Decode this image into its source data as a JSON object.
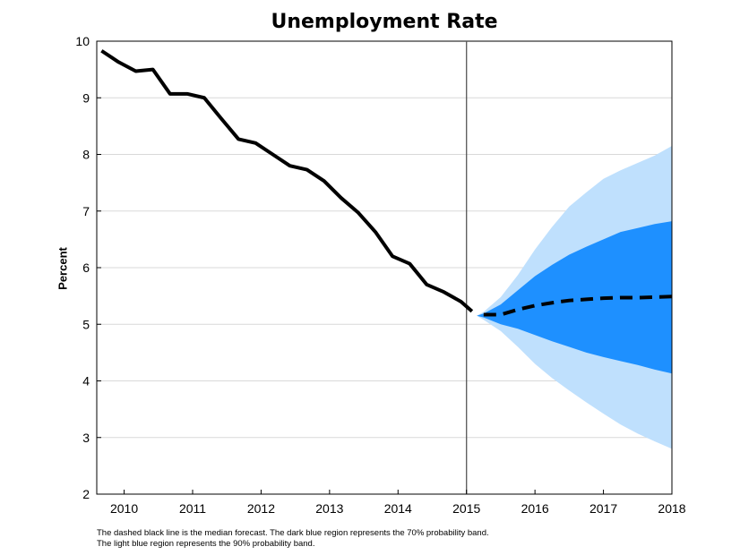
{
  "chart_data": {
    "type": "line",
    "title": "Unemployment Rate",
    "xlabel": "",
    "ylabel": "Percent",
    "ylim": [
      2,
      10
    ],
    "xlim": [
      2009.6,
      2018.0
    ],
    "yticks": [
      "2",
      "3",
      "4",
      "5",
      "6",
      "7",
      "8",
      "9",
      "10"
    ],
    "xticks": [
      "2010",
      "2011",
      "2012",
      "2013",
      "2014",
      "2015",
      "2016",
      "2017",
      "2018"
    ],
    "forecast_start": 2015.0,
    "grid": true,
    "colors": {
      "history": "#000000",
      "median": "#000000",
      "band70": "#1e90ff",
      "band90": "#bfe0fd",
      "divider": "#555555"
    },
    "series": [
      {
        "style": "solid",
        "x": [
          2009.67,
          2009.92,
          2010.17,
          2010.42,
          2010.67,
          2010.92,
          2011.17,
          2011.42,
          2011.67,
          2011.92,
          2012.17,
          2012.42,
          2012.67,
          2012.92,
          2013.17,
          2013.42,
          2013.67,
          2013.92,
          2014.17,
          2014.42,
          2014.67,
          2014.92,
          2015.08
        ],
        "y": [
          9.83,
          9.63,
          9.47,
          9.5,
          9.07,
          9.07,
          9.0,
          8.63,
          8.27,
          8.2,
          8.0,
          7.8,
          7.73,
          7.53,
          7.23,
          6.97,
          6.63,
          6.2,
          6.07,
          5.7,
          5.57,
          5.4,
          5.23
        ]
      },
      {
        "style": "dashed",
        "x": [
          2015.25,
          2015.5,
          2015.75,
          2016.0,
          2016.25,
          2016.5,
          2016.75,
          2017.0,
          2017.25,
          2017.5,
          2017.75,
          2018.0
        ],
        "y": [
          5.17,
          5.17,
          5.26,
          5.33,
          5.38,
          5.42,
          5.44,
          5.46,
          5.47,
          5.47,
          5.48,
          5.49
        ]
      }
    ],
    "bands": [
      {
        "level": "90%",
        "x": [
          2015.15,
          2015.25,
          2015.5,
          2015.75,
          2016.0,
          2016.25,
          2016.5,
          2016.75,
          2017.0,
          2017.25,
          2017.5,
          2017.75,
          2018.0
        ],
        "upper": [
          5.15,
          5.22,
          5.48,
          5.87,
          6.32,
          6.72,
          7.08,
          7.33,
          7.57,
          7.72,
          7.85,
          7.98,
          8.15
        ],
        "lower": [
          5.15,
          5.08,
          4.88,
          4.6,
          4.3,
          4.05,
          3.83,
          3.62,
          3.42,
          3.23,
          3.07,
          2.93,
          2.8
        ]
      },
      {
        "level": "70%",
        "x": [
          2015.15,
          2015.25,
          2015.5,
          2015.75,
          2016.0,
          2016.25,
          2016.5,
          2016.75,
          2017.0,
          2017.25,
          2017.5,
          2017.75,
          2018.0
        ],
        "upper": [
          5.15,
          5.19,
          5.35,
          5.6,
          5.85,
          6.05,
          6.23,
          6.37,
          6.5,
          6.63,
          6.7,
          6.77,
          6.82
        ],
        "lower": [
          5.15,
          5.12,
          5.0,
          4.92,
          4.81,
          4.7,
          4.6,
          4.5,
          4.42,
          4.35,
          4.28,
          4.2,
          4.13
        ]
      }
    ]
  },
  "footnote": {
    "line1": "The dashed black line is the median forecast. The dark blue region represents the 70% probability band.",
    "line2": "The light blue region represents the 90% probability band."
  }
}
